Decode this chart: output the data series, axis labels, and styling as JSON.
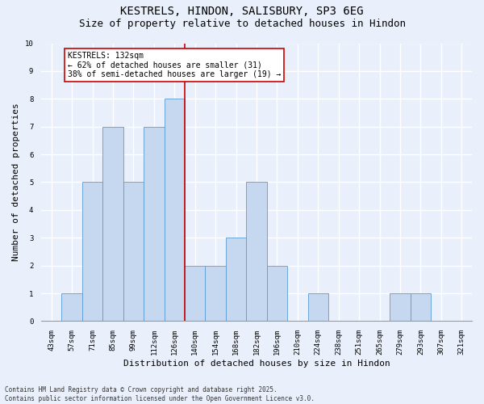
{
  "title1": "KESTRELS, HINDON, SALISBURY, SP3 6EG",
  "title2": "Size of property relative to detached houses in Hindon",
  "xlabel": "Distribution of detached houses by size in Hindon",
  "ylabel": "Number of detached properties",
  "categories": [
    "43sqm",
    "57sqm",
    "71sqm",
    "85sqm",
    "99sqm",
    "112sqm",
    "126sqm",
    "140sqm",
    "154sqm",
    "168sqm",
    "182sqm",
    "196sqm",
    "210sqm",
    "224sqm",
    "238sqm",
    "251sqm",
    "265sqm",
    "279sqm",
    "293sqm",
    "307sqm",
    "321sqm"
  ],
  "values": [
    0,
    1,
    5,
    7,
    5,
    7,
    8,
    2,
    2,
    3,
    5,
    2,
    0,
    1,
    0,
    0,
    0,
    1,
    1,
    0,
    0
  ],
  "bar_color": "#c5d8f0",
  "bar_edge_color": "#5b9bd5",
  "background_color": "#eaf0fb",
  "grid_color": "#ffffff",
  "vline_x": 6.5,
  "vline_color": "#cc0000",
  "annotation_text": "KESTRELS: 132sqm\n← 62% of detached houses are smaller (31)\n38% of semi-detached houses are larger (19) →",
  "annotation_box_color": "#ffffff",
  "annotation_box_edge": "#cc0000",
  "ylim": [
    0,
    10
  ],
  "yticks": [
    0,
    1,
    2,
    3,
    4,
    5,
    6,
    7,
    8,
    9,
    10
  ],
  "footnote": "Contains HM Land Registry data © Crown copyright and database right 2025.\nContains public sector information licensed under the Open Government Licence v3.0.",
  "title_fontsize": 10,
  "subtitle_fontsize": 9,
  "axis_label_fontsize": 8,
  "tick_fontsize": 6.5,
  "annotation_fontsize": 7,
  "footnote_fontsize": 5.5
}
